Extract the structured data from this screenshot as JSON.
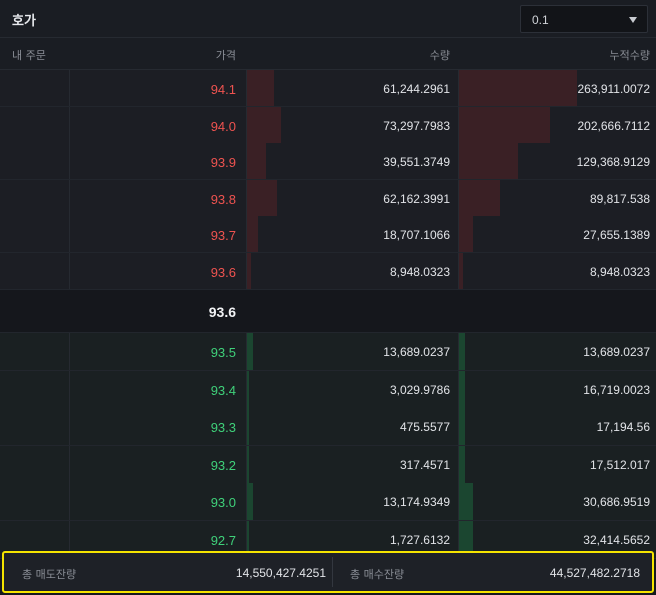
{
  "header": {
    "title": "호가",
    "tick_size": "0.1"
  },
  "columns": {
    "my_order": "내 주문",
    "price": "가격",
    "qty": "수량",
    "cum": "누적수량"
  },
  "asks": [
    {
      "price": "94.1",
      "qty": "61,244.2961",
      "cum": "263,911.0072",
      "qty_frac": 0.13,
      "cum_frac": 0.6
    },
    {
      "price": "94.0",
      "qty": "73,297.7983",
      "cum": "202,666.7112",
      "qty_frac": 0.16,
      "cum_frac": 0.46
    },
    {
      "price": "93.9",
      "qty": "39,551.3749",
      "cum": "129,368.9129",
      "qty_frac": 0.09,
      "cum_frac": 0.3
    },
    {
      "price": "93.8",
      "qty": "62,162.3991",
      "cum": "89,817.538",
      "qty_frac": 0.14,
      "cum_frac": 0.21
    },
    {
      "price": "93.7",
      "qty": "18,707.1066",
      "cum": "27,655.1389",
      "qty_frac": 0.05,
      "cum_frac": 0.07
    },
    {
      "price": "93.6",
      "qty": "8,948.0323",
      "cum": "8,948.0323",
      "qty_frac": 0.02,
      "cum_frac": 0.02
    }
  ],
  "current_price": "93.6",
  "bids": [
    {
      "price": "93.5",
      "qty": "13,689.0237",
      "cum": "13,689.0237",
      "qty_frac": 0.03,
      "cum_frac": 0.03
    },
    {
      "price": "93.4",
      "qty": "3,029.9786",
      "cum": "16,719.0023",
      "qty_frac": 0.01,
      "cum_frac": 0.03
    },
    {
      "price": "93.3",
      "qty": "475.5577",
      "cum": "17,194.56",
      "qty_frac": 0.0,
      "cum_frac": 0.03
    },
    {
      "price": "93.2",
      "qty": "317.4571",
      "cum": "17,512.017",
      "qty_frac": 0.0,
      "cum_frac": 0.03
    },
    {
      "price": "93.0",
      "qty": "13,174.9349",
      "cum": "30,686.9519",
      "qty_frac": 0.03,
      "cum_frac": 0.07
    },
    {
      "price": "92.7",
      "qty": "1,727.6132",
      "cum": "32,414.5652",
      "qty_frac": 0.0,
      "cum_frac": 0.07
    }
  ],
  "footer": {
    "ask_label": "총 매도잔량",
    "ask_total": "14,550,427.4251",
    "bid_label": "총 매수잔량",
    "bid_total": "44,527,482.2718"
  },
  "colors": {
    "ask": "#ef5350",
    "bid": "#3fd17a",
    "highlight": "#f5e400"
  }
}
